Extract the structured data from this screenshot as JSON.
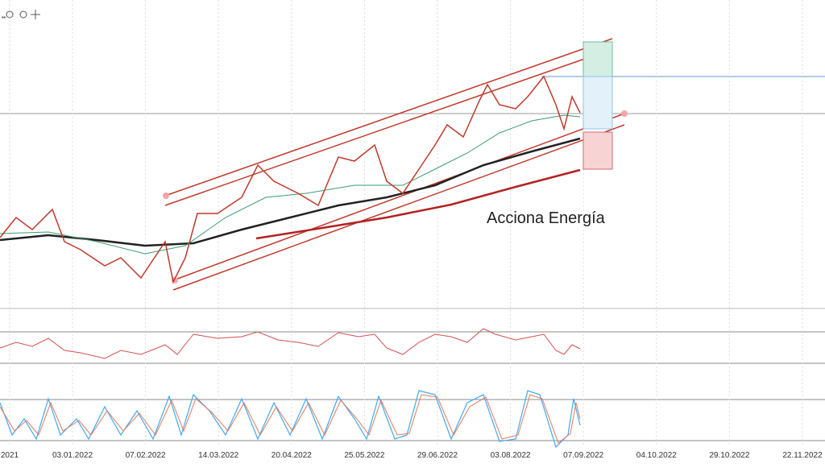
{
  "chart_data": {
    "type": "candlestick",
    "annotation": "Acciona Energía",
    "categories": [
      "2021",
      "03.01.2022",
      "07.02.2022",
      "14.03.2022",
      "20.04.2022",
      "25.05.2022",
      "29.06.2022",
      "03.08.2022",
      "07.09.2022",
      "04.10.2022",
      "29.10.2022",
      "22.11.2022"
    ]
  }
}
